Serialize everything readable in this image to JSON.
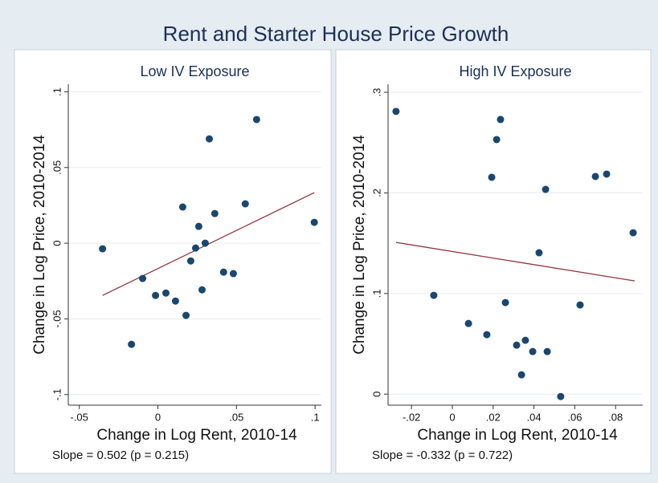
{
  "title": "Rent and Starter House Price Growth",
  "chart_data": [
    {
      "type": "scatter",
      "title": "Low IV Exposure",
      "x_label": "Change in Log Rent, 2010-14",
      "y_label": "Change in Log Price, 2010-2014",
      "note": "Slope = 0.502 (p = 0.215)",
      "color": "#1a476f",
      "line_color": "#90353b",
      "grid": true,
      "points": {
        "x": [
          -0.0352,
          -0.0168,
          -0.0097,
          -0.0015,
          0.0051,
          0.0112,
          0.0158,
          0.0179,
          0.0209,
          0.024,
          0.026,
          0.0281,
          0.0301,
          0.0327,
          0.0362,
          0.0418,
          0.048,
          0.0556,
          0.0628,
          0.0995
        ],
        "y": [
          -0.0037,
          -0.0668,
          -0.0233,
          -0.0345,
          -0.0329,
          -0.0382,
          0.0239,
          -0.0477,
          -0.0117,
          -0.0032,
          0.0111,
          -0.0308,
          0.0,
          0.0689,
          0.0196,
          -0.0191,
          -0.0201,
          0.026,
          0.0817,
          0.0138
        ]
      },
      "fit_line": {
        "x": [
          -0.0352,
          0.0995
        ],
        "y": [
          -0.0345,
          0.0334
        ]
      },
      "xlim": [
        -0.057,
        0.104
      ],
      "ylim": [
        -0.107,
        0.105
      ],
      "xticks": [
        {
          "value": -0.05,
          "label": "-.05"
        },
        0,
        {
          "value": 0.05,
          "label": ".05"
        },
        {
          "value": 0.1,
          "label": ".1"
        }
      ],
      "yticks": [
        {
          "value": -0.1,
          "label": "-.1"
        },
        {
          "value": -0.05,
          "label": "-.05"
        },
        0,
        {
          "value": 0.05,
          "label": ".05"
        },
        {
          "value": 0.1,
          "label": ".1"
        }
      ]
    },
    {
      "type": "scatter",
      "title": "High IV Exposure",
      "x_label": "Change in Log Rent, 2010-14",
      "y_label": "Change in Log Price, 2010-2014",
      "note": "Slope = -0.332 (p = 0.722)",
      "color": "#1a476f",
      "line_color": "#90353b",
      "grid": true,
      "points": {
        "x": [
          -0.0276,
          -0.0091,
          0.0079,
          0.0169,
          0.0193,
          0.0217,
          0.0236,
          0.026,
          0.0315,
          0.0339,
          0.0358,
          0.0394,
          0.0425,
          0.0465,
          0.0457,
          0.0531,
          0.0626,
          0.0701,
          0.0756,
          0.0886
        ],
        "y": [
          0.281,
          0.0982,
          0.0702,
          0.0591,
          0.2155,
          0.253,
          0.273,
          0.091,
          0.0487,
          0.0192,
          0.0535,
          0.0423,
          0.1405,
          0.0423,
          0.2035,
          -0.0024,
          0.0886,
          0.2163,
          0.2187,
          0.1604
        ]
      },
      "fit_line": {
        "x": [
          -0.0276,
          0.0894
        ],
        "y": [
          0.1508,
          0.1125
        ]
      },
      "xlim": [
        -0.0315,
        0.0933
      ],
      "ylim": [
        -0.011,
        0.308
      ],
      "xticks": [
        {
          "value": -0.02,
          "label": "-.02"
        },
        0,
        {
          "value": 0.02,
          "label": ".02"
        },
        {
          "value": 0.04,
          "label": ".04"
        },
        {
          "value": 0.06,
          "label": ".06"
        },
        {
          "value": 0.08,
          "label": ".08"
        }
      ],
      "yticks": [
        0,
        {
          "value": 0.1,
          "label": ".1"
        },
        {
          "value": 0.2,
          "label": ".2"
        },
        {
          "value": 0.3,
          "label": ".3"
        }
      ]
    }
  ]
}
